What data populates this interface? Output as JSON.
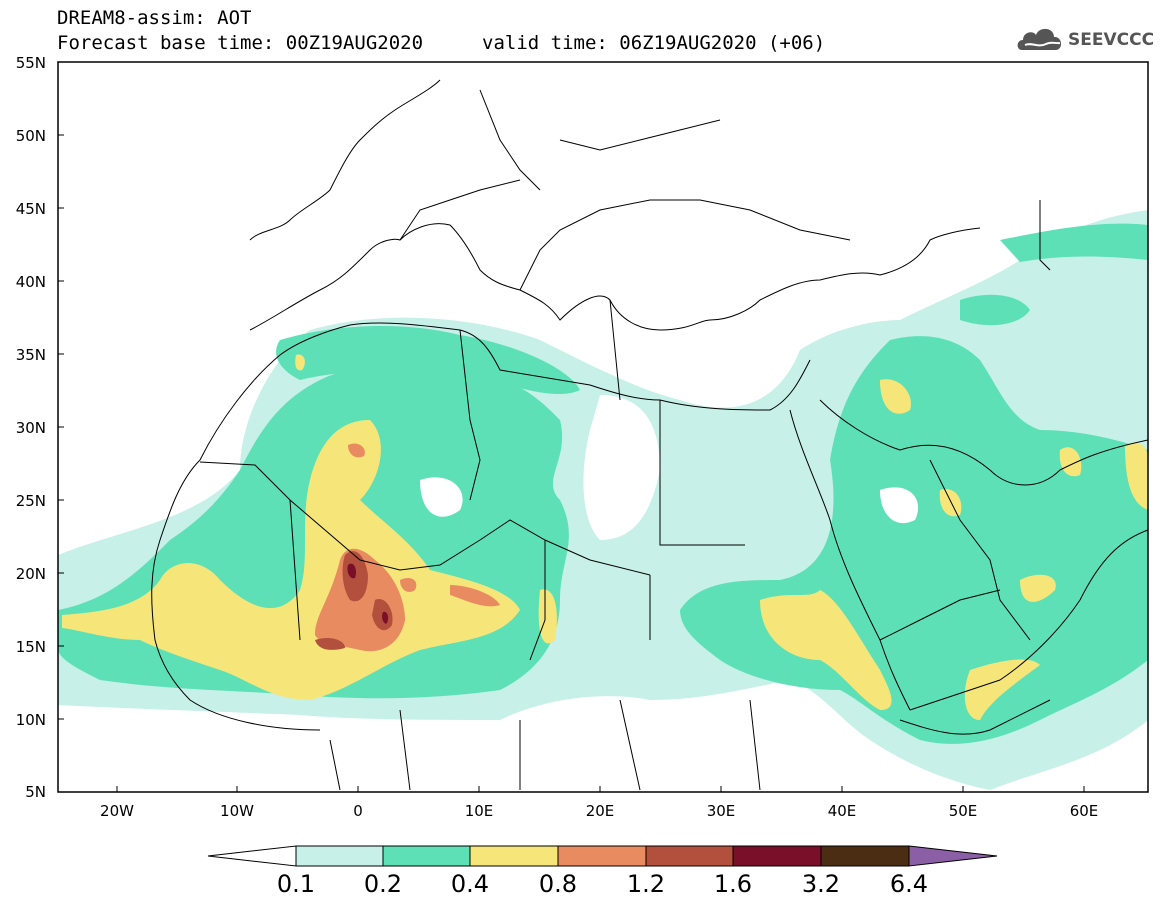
{
  "header": {
    "line1": "DREAM8-assim: AOT",
    "base_time": "Forecast base time: 00Z19AUG2020",
    "valid_time": "valid time: 06Z19AUG2020 (+06)"
  },
  "logo": {
    "text": "SEEVCCC",
    "icon": "cloud-icon",
    "color": "#555555"
  },
  "map": {
    "projection": "lat-lon",
    "lon_range": [
      -25,
      65
    ],
    "lat_range": [
      5,
      55
    ],
    "lat_labels": [
      "55N",
      "50N",
      "45N",
      "40N",
      "35N",
      "30N",
      "25N",
      "20N",
      "15N",
      "10N",
      "5N"
    ],
    "lon_labels": [
      "20W",
      "10W",
      "0",
      "10E",
      "20E",
      "30E",
      "40E",
      "50E",
      "60E"
    ]
  },
  "colorbar": {
    "levels": [
      "0.1",
      "0.2",
      "0.4",
      "0.8",
      "1.2",
      "1.6",
      "3.2",
      "6.4"
    ],
    "colors": [
      "#ffffff",
      "#c6f0e8",
      "#5ee0b6",
      "#f6e67a",
      "#e98b61",
      "#b3503d",
      "#7a0f29",
      "#4a2d12",
      "#8a5fa5"
    ]
  }
}
